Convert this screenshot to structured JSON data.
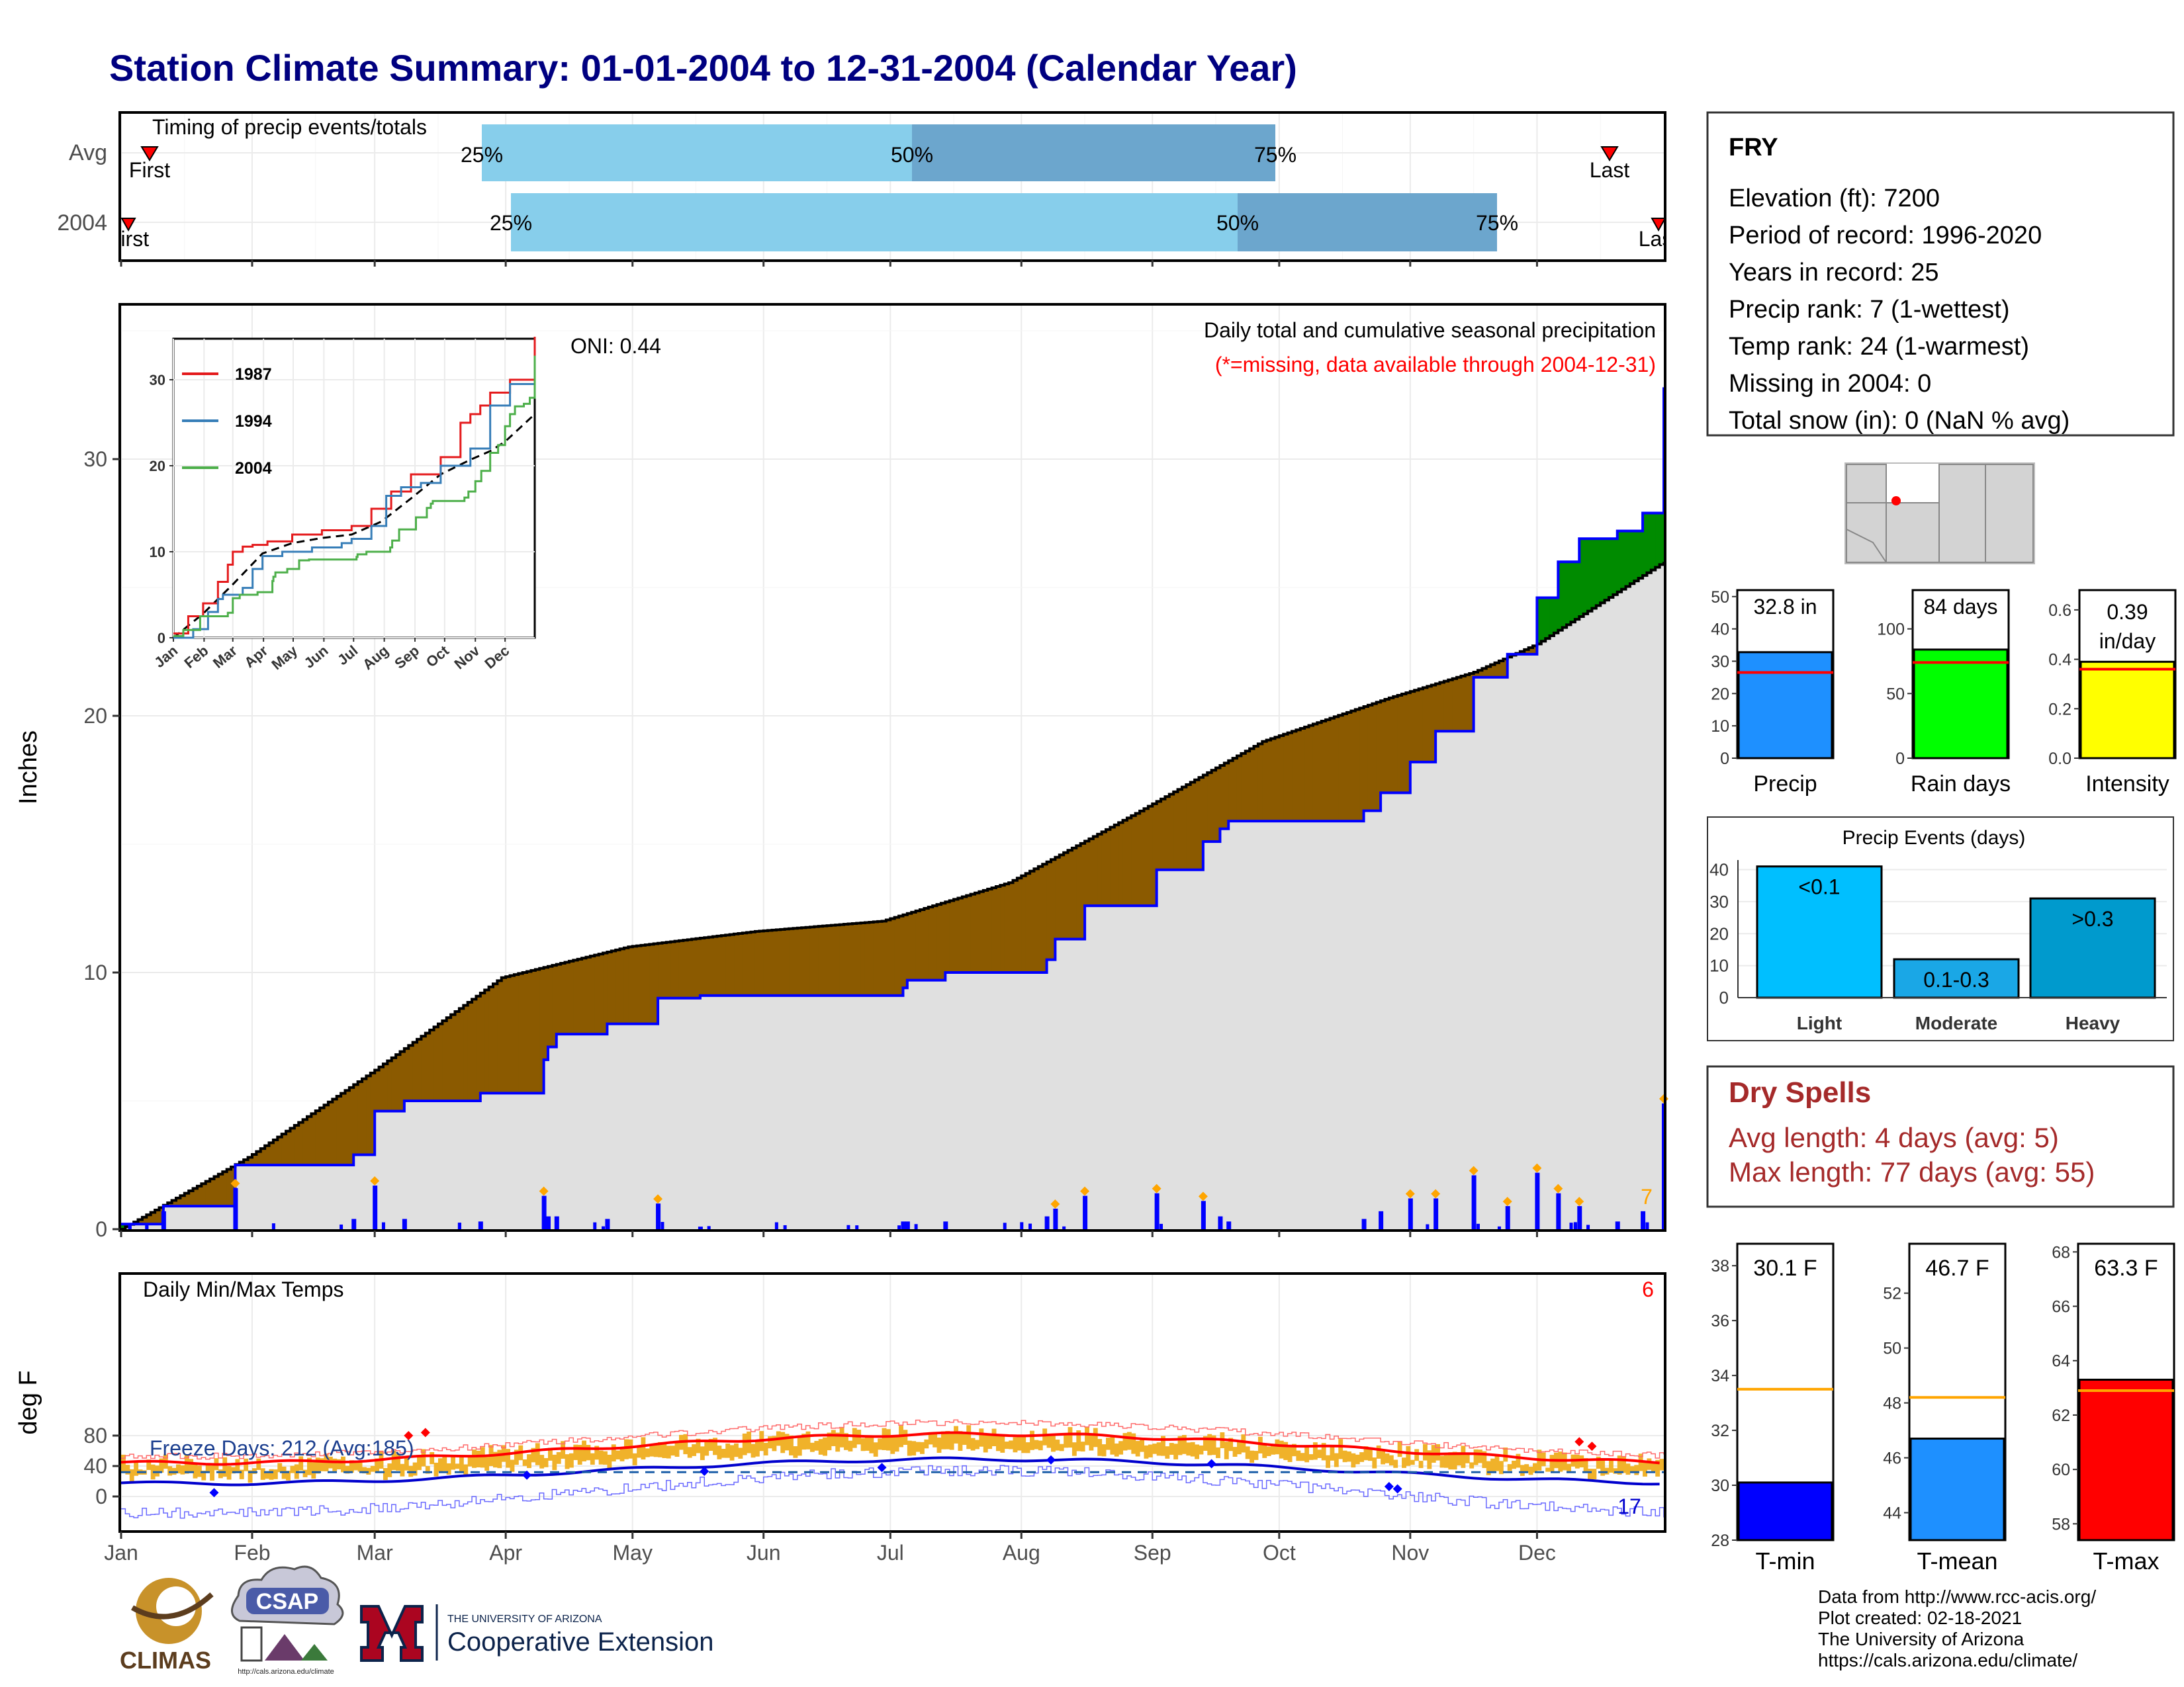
{
  "title": "Station Climate Summary: 01-01-2004 to 12-31-2004 (Calendar Year)",
  "timing": {
    "panel_label": "Timing of precip events/totals",
    "rows": [
      "Avg",
      "2004"
    ],
    "avg": {
      "first_label": "First",
      "last_label": "Last",
      "p25": "25%",
      "p50": "50%",
      "p75": "75%"
    },
    "y2004": {
      "first_label": "First",
      "last_label": "Last",
      "p25": "25%",
      "p50": "50%",
      "p75": "75%"
    },
    "colors": {
      "light": "#87CEEB",
      "dark": "#6CA6CD",
      "marker": "#FF0000"
    }
  },
  "months": [
    "Jan",
    "Feb",
    "Mar",
    "Apr",
    "May",
    "Jun",
    "Jul",
    "Aug",
    "Sep",
    "Oct",
    "Nov",
    "Dec"
  ],
  "precip_panel": {
    "ylabel": "Inches",
    "yticks": [
      "0",
      "10",
      "20",
      "30"
    ],
    "oni": "ONI: 0.44",
    "label": "Daily total and cumulative seasonal precipitation",
    "missing_note": "(*=missing, data available through 2004-12-31)",
    "corner_count": "7",
    "colors": {
      "above": "#008B00",
      "below": "#8B5A00",
      "fill": "#E0E0E0",
      "observed": "#0000FF",
      "daily": "#0000FF"
    }
  },
  "inset": {
    "yticks": [
      "0",
      "10",
      "20",
      "30"
    ],
    "months": [
      "Jan",
      "Feb",
      "Mar",
      "Apr",
      "May",
      "Jun",
      "Jul",
      "Aug",
      "Sep",
      "Oct",
      "Nov",
      "Dec"
    ],
    "legend": [
      {
        "name": "1987",
        "color": "#E41A1C"
      },
      {
        "name": "1994",
        "color": "#377EB8"
      },
      {
        "name": "2004",
        "color": "#4DAF4A"
      }
    ]
  },
  "temp_panel": {
    "ylabel": "deg F",
    "label": "Daily Min/Max Temps",
    "freeze": "Freeze Days: 212 (Avg:185)",
    "count_red": "6",
    "count_blue": "17",
    "yticks": [
      "0",
      "40",
      "80"
    ]
  },
  "station": {
    "name": "FRY",
    "lines": [
      "Elevation (ft): 7200",
      "Period of record: 1996-2020",
      "Years in record: 25",
      "Precip rank: 7 (1-wettest)",
      "Temp rank: 24 (1-warmest)",
      "Missing in 2004: 0",
      "Total snow (in): 0 (NaN % avg)"
    ]
  },
  "summary_bars": [
    {
      "label": "Precip",
      "value_text": "32.8 in",
      "value": 32.8,
      "avg": 26.5,
      "ymax": 52,
      "ticks": [
        "0",
        "10",
        "20",
        "30",
        "40",
        "50"
      ],
      "color": "#1E90FF"
    },
    {
      "label": "Rain days",
      "value_text": "84 days",
      "value": 84,
      "avg": 74,
      "ymax": 130,
      "ticks": [
        "0",
        "50",
        "100"
      ],
      "color": "#00FF00"
    },
    {
      "label": "Intensity",
      "value_text": "0.39 in/day",
      "value": 0.39,
      "avg": 0.36,
      "ymax": 0.68,
      "ticks": [
        "0.0",
        "0.2",
        "0.4",
        "0.6"
      ],
      "color": "#FFFF00"
    }
  ],
  "events": {
    "title": "Precip Events (days)",
    "yticks": [
      "0",
      "10",
      "20",
      "30",
      "40"
    ],
    "bars": [
      {
        "category": "Light",
        "value": 41,
        "label": "<0.1",
        "color": "#00BFFF"
      },
      {
        "category": "Moderate",
        "value": 12,
        "label": "0.1-0.3",
        "color": "#1AA7E6"
      },
      {
        "category": "Heavy",
        "value": 31,
        "label": ">0.3",
        "color": "#009ACD"
      }
    ]
  },
  "dry_spells": {
    "title": "Dry Spells",
    "avg_line": "Avg length: 4 days (avg: 5)",
    "max_line": "Max length: 77 days (avg: 55)"
  },
  "temp_bars": [
    {
      "label": "T-min",
      "value_text": "30.1 F",
      "value": 30.1,
      "avg": 33.5,
      "ymin": 28,
      "ymax": 38.8,
      "ticks": [
        "28",
        "30",
        "32",
        "34",
        "36",
        "38"
      ],
      "color": "#0000FF"
    },
    {
      "label": "T-mean",
      "value_text": "46.7 F",
      "value": 46.7,
      "avg": 48.2,
      "ymin": 43,
      "ymax": 53.8,
      "ticks": [
        "44",
        "46",
        "48",
        "50",
        "52"
      ],
      "color": "#1E90FF"
    },
    {
      "label": "T-max",
      "value_text": "63.3 F",
      "value": 63.3,
      "avg": 62.9,
      "ymin": 57.4,
      "ymax": 68.3,
      "ticks": [
        "58",
        "60",
        "62",
        "64",
        "66",
        "68"
      ],
      "color": "#FF0000"
    }
  ],
  "credits": {
    "lines": [
      "Data from http://www.rcc-acis.org/",
      "Plot created: 02-18-2021",
      "The University of Arizona",
      "https://cals.arizona.edu/climate/"
    ],
    "logos": {
      "climas": "CLIMAS",
      "csap": "CSAP",
      "csap_url": "http://cals.arizona.edu/climate",
      "ua_top": "THE UNIVERSITY OF ARIZONA",
      "ua_bottom": "Cooperative Extension"
    }
  },
  "chart_data": {
    "type": "area",
    "title": "Station Climate Summary: 01-01-2004 to 12-31-2004 (Calendar Year)",
    "ylabel": "Inches",
    "ylim": [
      0,
      35
    ],
    "cumulative_observed": {
      "days": [
        0,
        10,
        26,
        27,
        55,
        60,
        67,
        85,
        100,
        101,
        103,
        115,
        127,
        137,
        185,
        186,
        195,
        219,
        221,
        228,
        245,
        256,
        260,
        262,
        294,
        295,
        298,
        305,
        311,
        320,
        328,
        335,
        340,
        345,
        354,
        360,
        365
      ],
      "values": [
        0.2,
        0.9,
        0.9,
        2.5,
        2.9,
        4.6,
        5.0,
        5.3,
        6.6,
        7.1,
        7.6,
        8.0,
        9.0,
        9.1,
        9.4,
        9.7,
        10.0,
        10.5,
        11.3,
        12.6,
        14.0,
        15.1,
        15.6,
        15.9,
        16.3,
        16.3,
        17.0,
        18.2,
        19.4,
        21.5,
        22.4,
        24.6,
        26.0,
        26.9,
        27.2,
        27.9,
        32.8
      ]
    },
    "cumulative_average": {
      "days": [
        0,
        30,
        60,
        90,
        120,
        150,
        180,
        210,
        240,
        270,
        300,
        320,
        335,
        365
      ],
      "values": [
        0.0,
        2.8,
        6.2,
        9.8,
        11.0,
        11.6,
        12.0,
        13.5,
        16.2,
        19.0,
        20.7,
        21.7,
        22.8,
        26.0
      ]
    },
    "precip_events_days": {
      "categories": [
        "Light",
        "Moderate",
        "Heavy"
      ],
      "values": [
        41,
        12,
        31
      ]
    },
    "temperature_bars_F": {
      "categories": [
        "T-min",
        "T-mean",
        "T-max"
      ],
      "values": [
        30.1,
        46.7,
        63.3
      ],
      "averages": [
        33.5,
        48.2,
        62.9
      ]
    }
  }
}
